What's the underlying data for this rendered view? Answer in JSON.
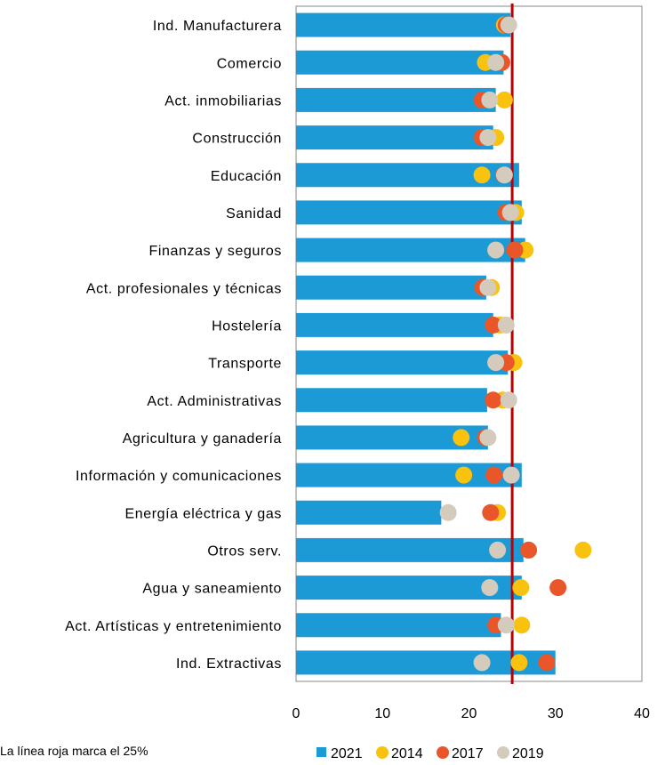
{
  "chart_data": {
    "type": "bar",
    "orientation": "horizontal",
    "categories": [
      "Ind. Manufacturera",
      "Comercio",
      "Act. inmobiliarias",
      "Construcción",
      "Educación",
      "Sanidad",
      "Finanzas y seguros",
      "Act. profesionales y técnicas",
      "Hostelería",
      "Transporte",
      "Act. Administrativas",
      "Agricultura y ganadería",
      "Información y comunicaciones",
      "Energía eléctrica y gas",
      "Otros serv.",
      "Agua y saneamiento",
      "Act. Artísticas y entretenimiento",
      "Ind. Extractivas"
    ],
    "series": [
      {
        "name": "2021",
        "kind": "bar",
        "color": "#1c9ad6",
        "values": [
          24.8,
          24.0,
          23.1,
          22.8,
          25.8,
          26.1,
          26.5,
          22.0,
          22.8,
          24.5,
          22.1,
          22.2,
          26.1,
          16.8,
          26.3,
          26.1,
          23.7,
          30.0
        ]
      },
      {
        "name": "2014",
        "kind": "point",
        "color": "#f8c20e",
        "values": [
          24.1,
          21.9,
          24.1,
          23.1,
          21.5,
          25.4,
          26.5,
          22.6,
          23.6,
          25.2,
          23.9,
          19.1,
          19.4,
          23.3,
          33.2,
          26.0,
          26.1,
          25.8
        ]
      },
      {
        "name": "2017",
        "kind": "point",
        "color": "#e8562a",
        "values": [
          24.3,
          23.8,
          21.5,
          21.5,
          24.0,
          24.3,
          25.3,
          21.6,
          22.8,
          24.3,
          22.8,
          21.9,
          22.9,
          22.5,
          26.9,
          30.3,
          23.1,
          29.0
        ]
      },
      {
        "name": "2019",
        "kind": "point",
        "color": "#d4cbbd",
        "values": [
          24.6,
          23.1,
          22.4,
          22.2,
          24.1,
          24.8,
          23.1,
          22.2,
          24.3,
          23.1,
          24.6,
          22.2,
          24.9,
          17.6,
          23.3,
          22.4,
          24.3,
          21.5
        ]
      }
    ],
    "reference_line": {
      "value": 25,
      "color": "#c00000"
    },
    "xlim": [
      0,
      40
    ],
    "xticks": [
      0,
      10,
      20,
      30,
      40
    ],
    "grid": false,
    "legend_position": "bottom",
    "title": "",
    "xlabel": "",
    "ylabel": ""
  },
  "note": "La línea roja marca el 25%"
}
